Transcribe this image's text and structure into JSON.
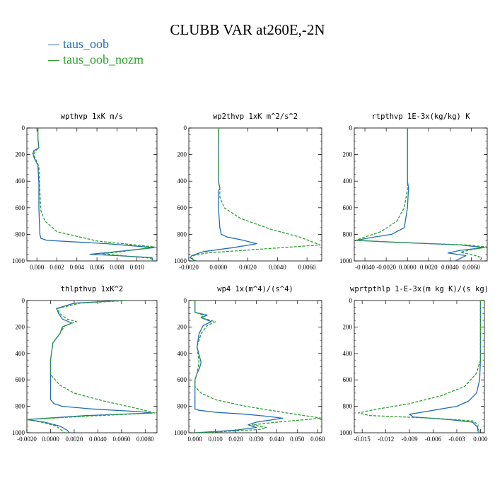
{
  "figure_title": "CLUBB VAR at260E,-2N",
  "legend": [
    {
      "label": "taus_oob",
      "color": "#1f6db3",
      "dash": "solid"
    },
    {
      "label": "taus_oob_nozm",
      "color": "#2ca02c",
      "dash": "dashed"
    }
  ],
  "chart_data": [
    {
      "type": "line",
      "title": "wpthvp  1xK m/s",
      "xlim": [
        -0.001,
        0.012
      ],
      "xticks": [
        0.0,
        0.002,
        0.004,
        0.006,
        0.008,
        0.01
      ],
      "xticklabels": [
        "0.000",
        "0.002",
        "0.004",
        "0.006",
        "0.008",
        "0.010"
      ],
      "ylim": [
        0,
        1000
      ],
      "yticks": [
        0,
        200,
        400,
        600,
        800,
        1000
      ],
      "yticklabels": [
        "0",
        "200",
        "400",
        "600",
        "800",
        "1000"
      ],
      "series": [
        {
          "name": "taus_oob",
          "x": [
            0.0001,
            0.0001,
            0.0002,
            -0.0003,
            -0.0004,
            -0.0003,
            0.0001,
            0.0002,
            0.0002,
            0.0003,
            0.0004,
            0.001,
            0.007,
            0.0117,
            0.008,
            0.0053,
            0.008,
            0.0115,
            0.0116
          ],
          "y": [
            0,
            80,
            150,
            170,
            190,
            220,
            280,
            420,
            600,
            800,
            830,
            845,
            870,
            900,
            930,
            950,
            960,
            975,
            1000
          ]
        },
        {
          "name": "taus_oob_nozm",
          "x": [
            0.0001,
            0.0001,
            0.0002,
            -0.0002,
            -0.0003,
            -0.0002,
            0.0002,
            0.0003,
            0.0004,
            0.0008,
            0.002,
            0.006,
            0.0118,
            0.0085,
            0.0065,
            0.0085,
            0.0114,
            0.0115
          ],
          "y": [
            0,
            80,
            150,
            175,
            195,
            220,
            290,
            480,
            620,
            700,
            780,
            850,
            895,
            930,
            945,
            960,
            980,
            1000
          ]
        }
      ]
    },
    {
      "type": "line",
      "title": "wp2thvp  1xK m^2/s^2",
      "xlim": [
        -0.002,
        0.007
      ],
      "xticks": [
        -0.002,
        0.0,
        0.002,
        0.004,
        0.006
      ],
      "xticklabels": [
        "-0.0020",
        "0.0000",
        "0.0020",
        "0.0040",
        "0.0060"
      ],
      "ylim": [
        0,
        1000
      ],
      "yticks": [
        0,
        200,
        400,
        600,
        800,
        1000
      ],
      "yticklabels": [
        "0",
        "200",
        "400",
        "600",
        "800",
        "1000"
      ],
      "series": [
        {
          "name": "taus_oob",
          "x": [
            0.0,
            0.0,
            0.0,
            0.0001,
            0.0,
            0.0,
            0.0001,
            0.0002,
            0.0006,
            0.0015,
            0.0026,
            0.001,
            -0.001,
            -0.0018,
            -0.0019,
            -0.0016
          ],
          "y": [
            0,
            200,
            400,
            450,
            480,
            600,
            750,
            800,
            820,
            840,
            870,
            900,
            930,
            960,
            975,
            1000
          ]
        },
        {
          "name": "taus_oob_nozm",
          "x": [
            0.0,
            0.0,
            0.0,
            0.0001,
            0.0001,
            0.0004,
            0.0015,
            0.0035,
            0.0055,
            0.0069,
            0.003,
            -0.0008,
            -0.0017,
            -0.0018,
            -0.0015
          ],
          "y": [
            0,
            200,
            400,
            460,
            520,
            600,
            680,
            760,
            820,
            880,
            910,
            940,
            960,
            980,
            1000
          ]
        }
      ]
    },
    {
      "type": "line",
      "title": "rtpthvp  1E-3x(kg/kg) K",
      "xlim": [
        -0.005,
        0.0075
      ],
      "xticks": [
        -0.004,
        -0.002,
        0.0,
        0.002,
        0.004,
        0.006
      ],
      "xticklabels": [
        "-0.0040",
        "-0.0020",
        "0.0000",
        "0.0020",
        "0.0040",
        "0.0060"
      ],
      "ylim": [
        0,
        1000
      ],
      "yticks": [
        0,
        200,
        400,
        600,
        800,
        1000
      ],
      "yticklabels": [
        "0",
        "200",
        "400",
        "600",
        "800",
        "1000"
      ],
      "series": [
        {
          "name": "taus_oob",
          "x": [
            0.0,
            0.0,
            0.0,
            0.0001,
            0.0,
            -0.0003,
            -0.0015,
            -0.0035,
            -0.0048,
            -0.001,
            0.005,
            0.0072,
            0.005,
            0.0038,
            0.0055,
            0.005,
            0.0045
          ],
          "y": [
            0,
            200,
            400,
            450,
            600,
            750,
            800,
            825,
            845,
            860,
            880,
            900,
            920,
            940,
            960,
            980,
            1000
          ]
        },
        {
          "name": "taus_oob_nozm",
          "x": [
            0.0,
            0.0,
            0.0,
            0.0,
            -0.0003,
            -0.001,
            -0.0025,
            -0.004,
            -0.0049,
            -0.001,
            0.0055,
            0.0075,
            0.006,
            0.005,
            0.0062,
            0.007,
            0.0068
          ],
          "y": [
            0,
            200,
            400,
            460,
            600,
            700,
            780,
            820,
            845,
            860,
            880,
            895,
            915,
            935,
            955,
            975,
            1000
          ]
        }
      ]
    },
    {
      "type": "line",
      "title": "thlpthvp  1xK^2",
      "xlim": [
        -0.002,
        0.009
      ],
      "xticks": [
        -0.002,
        0.0,
        0.002,
        0.004,
        0.006,
        0.008
      ],
      "xticklabels": [
        "-0.0020",
        "0.0000",
        "0.0020",
        "0.0040",
        "0.0060",
        "0.0080"
      ],
      "ylim": [
        0,
        1000
      ],
      "yticks": [
        0,
        200,
        400,
        600,
        800,
        1000
      ],
      "yticklabels": [
        "0",
        "200",
        "400",
        "600",
        "800",
        "1000"
      ],
      "series": [
        {
          "name": "taus_oob",
          "x": [
            0.006,
            0.002,
            0.0005,
            0.0007,
            0.001,
            0.0018,
            0.001,
            0.0008,
            0.0002,
            0.0,
            0.0,
            0.0,
            0.0003,
            0.001,
            0.0035,
            0.0075,
            0.0086,
            0.003,
            -0.002,
            -0.0005,
            0.0008,
            0.0014,
            0.0016
          ],
          "y": [
            0,
            20,
            60,
            100,
            140,
            170,
            200,
            250,
            320,
            450,
            600,
            750,
            780,
            800,
            820,
            840,
            850,
            870,
            900,
            920,
            950,
            980,
            1000
          ]
        },
        {
          "name": "taus_oob_nozm",
          "x": [
            0.0065,
            0.0025,
            0.0006,
            0.0008,
            0.0014,
            0.0022,
            0.0012,
            0.0008,
            0.0002,
            0.0,
            0.0,
            0.0008,
            0.002,
            0.0045,
            0.0075,
            0.0088,
            0.003,
            -0.002,
            -0.0008,
            0.0005,
            0.0012
          ],
          "y": [
            0,
            20,
            60,
            100,
            140,
            160,
            190,
            250,
            320,
            450,
            560,
            640,
            700,
            760,
            820,
            850,
            875,
            900,
            920,
            950,
            1000
          ]
        }
      ]
    },
    {
      "type": "line",
      "title": "wp4  1x(m^4)/(s^4)",
      "xlim": [
        -0.003,
        0.062
      ],
      "xticks": [
        0.0,
        0.01,
        0.02,
        0.03,
        0.04,
        0.05,
        0.06
      ],
      "xticklabels": [
        "0.000",
        "0.010",
        "0.020",
        "0.030",
        "0.040",
        "0.050",
        "0.060"
      ],
      "ylim": [
        0,
        1000
      ],
      "yticks": [
        0,
        200,
        400,
        600,
        800,
        1000
      ],
      "yticklabels": [
        "0",
        "200",
        "400",
        "600",
        "800",
        "1000"
      ],
      "series": [
        {
          "name": "taus_oob",
          "x": [
            0.0,
            0.0,
            0.0,
            0.006,
            0.003,
            0.008,
            0.004,
            0.002,
            0.001,
            0.003,
            0.002,
            0.001,
            0.0,
            0.0,
            0.0,
            0.0,
            0.002,
            0.01,
            0.025,
            0.035,
            0.043,
            0.03,
            0.026,
            0.03,
            0.02,
            0.005,
            0.0
          ],
          "y": [
            0,
            40,
            90,
            110,
            130,
            160,
            190,
            250,
            350,
            470,
            520,
            550,
            600,
            700,
            800,
            820,
            830,
            845,
            860,
            875,
            890,
            920,
            940,
            960,
            980,
            995,
            1000
          ]
        },
        {
          "name": "taus_oob_nozm",
          "x": [
            0.0,
            0.0,
            0.0,
            0.004,
            0.003,
            0.01,
            0.006,
            0.003,
            0.001,
            0.002,
            0.001,
            0.0,
            0.0,
            0.003,
            0.01,
            0.025,
            0.045,
            0.062,
            0.04,
            0.028,
            0.035,
            0.032,
            0.01,
            0.0
          ],
          "y": [
            0,
            40,
            90,
            110,
            130,
            160,
            190,
            250,
            350,
            470,
            550,
            600,
            650,
            700,
            750,
            800,
            850,
            890,
            920,
            940,
            960,
            975,
            995,
            1000
          ]
        }
      ]
    },
    {
      "type": "line",
      "title": "wprtpthlp  1-E-3x(m kg K)/(s kg)",
      "xlim": [
        -0.016,
        0.0005
      ],
      "xticks": [
        -0.015,
        -0.012,
        -0.009,
        -0.006,
        -0.003,
        0.0
      ],
      "xticklabels": [
        "-0.015",
        "-0.012",
        "-0.009",
        "-0.006",
        "-0.003",
        "0.000"
      ],
      "ylim": [
        0,
        1000
      ],
      "yticks": [
        0,
        200,
        400,
        600,
        800,
        1000
      ],
      "yticklabels": [
        "0",
        "200",
        "400",
        "600",
        "800",
        "1000"
      ],
      "series": [
        {
          "name": "taus_oob",
          "x": [
            0.0,
            0.0,
            0.0,
            -0.0001,
            -0.0005,
            -0.0015,
            -0.003,
            -0.005,
            -0.007,
            -0.009,
            -0.0085,
            -0.004,
            -0.001,
            -0.0005,
            -0.0002,
            -0.0002
          ],
          "y": [
            0,
            200,
            450,
            600,
            700,
            760,
            800,
            820,
            840,
            860,
            880,
            900,
            920,
            950,
            980,
            1000
          ]
        },
        {
          "name": "taus_oob_nozm",
          "x": [
            0.0,
            0.0,
            0.0,
            -0.0005,
            -0.002,
            -0.005,
            -0.009,
            -0.013,
            -0.0155,
            -0.014,
            -0.006,
            -0.001,
            -0.0003,
            -0.0004,
            -0.0002
          ],
          "y": [
            0,
            200,
            450,
            550,
            650,
            720,
            780,
            820,
            850,
            870,
            890,
            910,
            940,
            980,
            1000
          ]
        }
      ]
    }
  ]
}
